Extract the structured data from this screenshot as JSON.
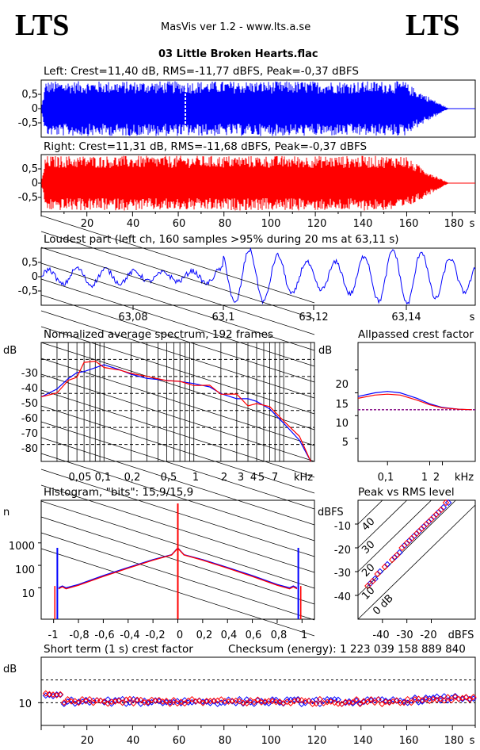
{
  "header": {
    "logo_left": "LTS",
    "logo_right": "LTS",
    "app_title": "MasVis ver 1.2 - www.lts.a.se",
    "file_name": "03 Little Broken Hearts.flac"
  },
  "colors": {
    "left": "#0000ff",
    "right": "#ff0000",
    "marker": "#ffffff"
  },
  "chart_data": [
    {
      "type": "area",
      "id": "left_waveform",
      "title": "Left: Crest=11,40 dB, RMS=-11,77 dBFS, Peak=-0,37 dBFS",
      "ylim": [
        -1,
        1
      ],
      "yticks": [
        "0,5",
        "0",
        "-0,5"
      ],
      "xlim": [
        0,
        190
      ],
      "envelope_peak": 0.96,
      "fade_out_start_s": 160,
      "fade_out_end_s": 178,
      "marker_time_s": 63.11
    },
    {
      "type": "area",
      "id": "right_waveform",
      "title": "Right: Crest=11,31 dB, RMS=-11,68 dBFS, Peak=-0,37 dBFS",
      "ylim": [
        -1,
        1
      ],
      "yticks": [
        "0,5",
        "0",
        "-0,5"
      ],
      "xlim": [
        0,
        190
      ],
      "xticks": [
        "20",
        "40",
        "60",
        "80",
        "100",
        "120",
        "140",
        "160",
        "180",
        "s"
      ],
      "envelope_peak": 0.96,
      "fade_out_start_s": 160,
      "fade_out_end_s": 178
    },
    {
      "type": "line",
      "id": "loudest_part",
      "title": "Loudest part (left  ch, 160 samples >95% during 20 ms at 63,11 s)",
      "ylim": [
        -1,
        1
      ],
      "yticks": [
        "0,5",
        "0",
        "-0,5"
      ],
      "xlim": [
        63.064,
        63.156
      ],
      "xticks": [
        "63,08",
        "63,1",
        "63,12",
        "63,14",
        "s"
      ]
    },
    {
      "type": "line",
      "id": "spectrum",
      "title": "Normalized average spectrum, 192 frames",
      "ylabel": "dB",
      "yticks": [
        "-30",
        "-40",
        "-50",
        "-60",
        "-70",
        "-80"
      ],
      "xticks": [
        "0,05",
        "0,1",
        "0,2",
        "0,5",
        "1",
        "2",
        "3",
        "4",
        "5",
        "7",
        "kHz"
      ],
      "ylim": [
        -90,
        -20
      ],
      "series": [
        {
          "x": [
            0.02,
            0.03,
            0.04,
            0.05,
            0.06,
            0.08,
            0.1,
            0.15,
            0.2,
            0.3,
            0.5,
            0.7,
            1,
            1.5,
            2,
            3,
            4,
            5,
            7,
            10,
            15,
            20
          ],
          "y": [
            -52,
            -48,
            -40,
            -38,
            -35,
            -33,
            -34,
            -37,
            -38,
            -40,
            -42,
            -43,
            -44,
            -47,
            -49,
            -52,
            -55,
            -57,
            -60,
            -67,
            -77,
            -90
          ]
        },
        {
          "x": [
            0.02,
            0.03,
            0.04,
            0.05,
            0.06,
            0.08,
            0.1,
            0.15,
            0.2,
            0.3,
            0.5,
            0.7,
            1,
            1.5,
            2,
            3,
            4,
            5,
            7,
            10,
            15,
            20
          ],
          "y": [
            -52,
            -49,
            -43,
            -38,
            -34,
            -33,
            -34,
            -37,
            -38,
            -40,
            -42,
            -43,
            -44,
            -47,
            -49,
            -52,
            -55,
            -57,
            -60,
            -67,
            -77,
            -90
          ]
        }
      ]
    },
    {
      "type": "line",
      "id": "allpassed_crest",
      "title": "Allpassed crest factor",
      "ylabel": "dB",
      "yticks": [
        "20",
        "15",
        "10",
        "5"
      ],
      "xticks": [
        "0,1",
        "1",
        "2",
        "kHz"
      ],
      "ylim": [
        0,
        26
      ],
      "reference_level": 11.3,
      "series": [
        {
          "x": [
            0.02,
            0.05,
            0.1,
            0.2,
            0.5,
            1,
            2,
            5,
            10
          ],
          "y": [
            14.2,
            15.0,
            15.3,
            15.0,
            13.8,
            12.6,
            11.8,
            11.4,
            11.3
          ]
        },
        {
          "x": [
            0.02,
            0.05,
            0.1,
            0.2,
            0.5,
            1,
            2,
            5,
            10
          ],
          "y": [
            13.8,
            14.5,
            14.7,
            14.5,
            13.4,
            12.4,
            11.7,
            11.4,
            11.3
          ]
        }
      ]
    },
    {
      "type": "line",
      "id": "histogram",
      "title": "Histogram, \"bits\": 15,9/15,9",
      "ylabel": "n",
      "yticks": [
        "1000",
        "100",
        "10"
      ],
      "xticks": [
        "-1",
        "-0,8",
        "-0,6",
        "-0,4",
        "-0,2",
        "0",
        "0,2",
        "0,4",
        "0,6",
        "0,8",
        "1"
      ],
      "xlim": [
        -1.1,
        1.1
      ],
      "series": [
        {
          "x": [
            -0.96,
            -0.93,
            -0.9,
            -0.8,
            -0.6,
            -0.4,
            -0.2,
            -0.05,
            0,
            0.05,
            0.2,
            0.4,
            0.6,
            0.8,
            0.9,
            0.93,
            0.96
          ],
          "y": [
            10,
            12,
            10,
            14,
            35,
            80,
            180,
            300,
            600,
            300,
            180,
            80,
            35,
            14,
            10,
            12,
            10
          ]
        },
        {
          "x": [
            -0.96,
            -0.93,
            -0.9,
            -0.8,
            -0.6,
            -0.4,
            -0.2,
            -0.05,
            0,
            0.05,
            0.2,
            0.4,
            0.6,
            0.8,
            0.9,
            0.93,
            0.96
          ],
          "y": [
            9,
            11,
            9,
            13,
            32,
            75,
            170,
            290,
            580,
            290,
            170,
            75,
            32,
            13,
            9,
            11,
            9
          ]
        }
      ]
    },
    {
      "type": "scatter",
      "id": "peak_vs_rms",
      "title": "Peak vs RMS level",
      "ylabel": "dBFS",
      "xlabel": "dBFS",
      "yticks": [
        "-10",
        "-20",
        "-30",
        "-40"
      ],
      "xticks": [
        "-40",
        "-30",
        "-20"
      ],
      "crest_lines": [
        "40",
        "30",
        "20",
        "10",
        "0 dB"
      ],
      "xlim": [
        -50,
        -2
      ],
      "ylim": [
        -50,
        0
      ],
      "series": [
        {
          "x": [
            -45,
            -43,
            -41,
            -38,
            -35,
            -33,
            -31,
            -29,
            -27,
            -25,
            -23,
            -21,
            -19,
            -17,
            -15,
            -13
          ],
          "y": [
            -35,
            -33,
            -30,
            -27,
            -24,
            -22,
            -19,
            -17,
            -15,
            -13,
            -11,
            -9,
            -7,
            -5,
            -3,
            -1
          ]
        },
        {
          "x": [
            -46,
            -44,
            -42,
            -39,
            -36,
            -34,
            -32,
            -30,
            -28,
            -26,
            -24,
            -22,
            -20,
            -18,
            -16,
            -14
          ],
          "y": [
            -36,
            -34,
            -31,
            -28,
            -25,
            -23,
            -20,
            -18,
            -16,
            -14,
            -12,
            -10,
            -8,
            -6,
            -4,
            -1
          ]
        }
      ]
    },
    {
      "type": "scatter",
      "id": "short_term_crest",
      "title": "Short term (1 s) crest factor",
      "checksum_label": "Checksum (energy):  1 223 039 158 889 840",
      "ylabel": "dB",
      "yticks": [
        "10"
      ],
      "xticks": [
        "20",
        "40",
        "60",
        "80",
        "100",
        "120",
        "140",
        "160",
        "180",
        "s"
      ],
      "xlim": [
        0,
        190
      ],
      "ylim": [
        0,
        30
      ],
      "mean_crest_db": 10.5
    }
  ]
}
